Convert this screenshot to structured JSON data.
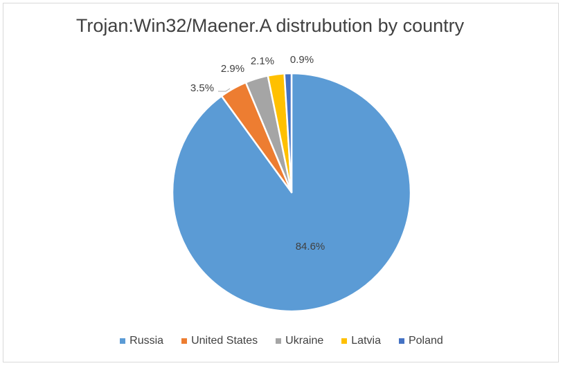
{
  "chart_data": {
    "type": "pie",
    "title": "Trojan:Win32/Maener.A distrubution by country",
    "categories": [
      "Russia",
      "United States",
      "Ukraine",
      "Latvia",
      "Poland"
    ],
    "values": [
      84.6,
      3.5,
      2.9,
      2.1,
      0.9
    ],
    "labels": [
      "84.6%",
      "3.5%",
      "2.9%",
      "2.1%",
      "0.9%"
    ],
    "colors": [
      "#5b9bd5",
      "#ed7d31",
      "#a5a5a5",
      "#ffc000",
      "#4472c4"
    ],
    "legend_position": "bottom",
    "start_angle": "12 o'clock",
    "direction": "clockwise"
  }
}
